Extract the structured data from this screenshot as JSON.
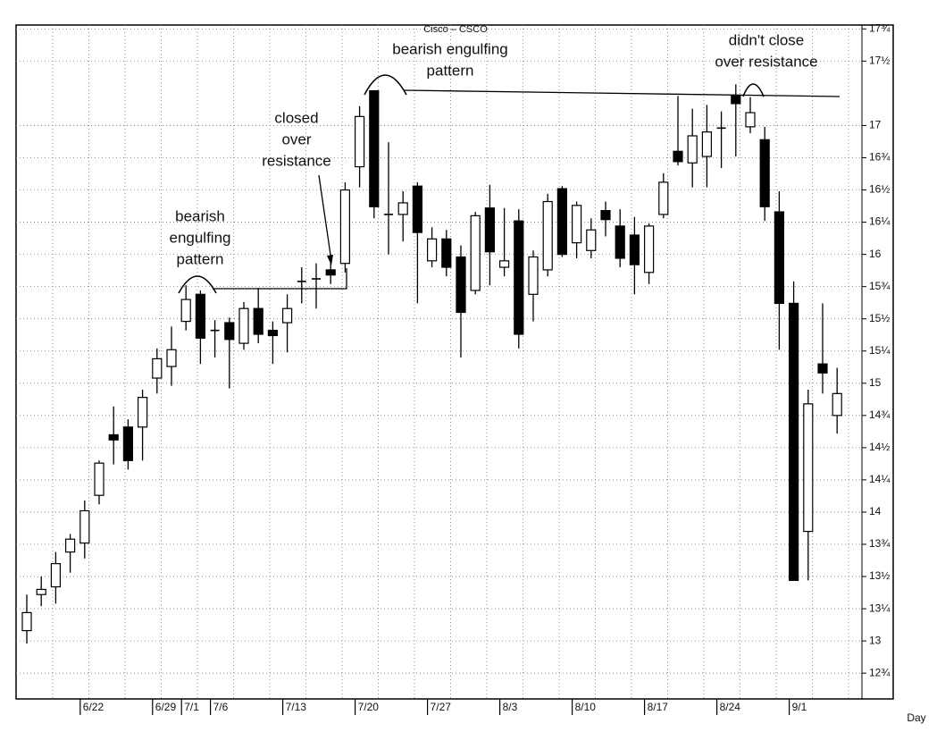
{
  "chart_data": {
    "type": "candlestick",
    "title": "Cisco – CSCO",
    "x_label": "Day",
    "categories": [
      null,
      null,
      null,
      null,
      "6/22",
      null,
      null,
      null,
      null,
      "6/29",
      null,
      "7/1",
      null,
      "7/6",
      null,
      null,
      null,
      null,
      "7/13",
      null,
      null,
      null,
      null,
      "7/20",
      null,
      null,
      null,
      null,
      "7/27",
      null,
      null,
      null,
      null,
      "8/3",
      null,
      null,
      null,
      null,
      "8/10",
      null,
      null,
      null,
      null,
      "8/17",
      null,
      null,
      null,
      null,
      "8/24",
      null,
      null,
      null,
      null,
      "9/1",
      null,
      null,
      null
    ],
    "open": [
      13.08,
      13.36,
      13.42,
      13.69,
      13.76,
      14.13,
      14.6,
      14.66,
      14.66,
      15.04,
      15.13,
      15.48,
      15.69,
      15.41,
      15.47,
      15.31,
      15.58,
      15.41,
      15.47,
      15.79,
      15.81,
      15.88,
      15.93,
      16.68,
      17.27,
      16.31,
      16.31,
      16.53,
      15.95,
      16.12,
      15.98,
      15.72,
      16.36,
      15.9,
      16.26,
      15.69,
      15.88,
      16.51,
      16.09,
      16.03,
      16.34,
      16.22,
      16.15,
      15.86,
      16.31,
      16.8,
      16.71,
      16.76,
      16.98,
      17.23,
      16.99,
      16.89,
      16.33,
      15.62,
      13.85,
      15.15,
      14.75
    ],
    "high": [
      13.36,
      13.5,
      13.69,
      13.83,
      14.09,
      14.4,
      14.82,
      14.72,
      14.95,
      15.27,
      15.44,
      15.76,
      15.72,
      15.49,
      15.51,
      15.63,
      15.74,
      15.48,
      15.69,
      15.9,
      15.93,
      15.97,
      16.56,
      17.15,
      17.27,
      16.87,
      16.49,
      16.56,
      16.21,
      16.19,
      16.07,
      16.33,
      16.54,
      16.36,
      16.35,
      16.03,
      16.47,
      16.53,
      16.41,
      16.28,
      16.41,
      16.35,
      16.29,
      16.24,
      16.63,
      17.23,
      17.13,
      17.16,
      17.11,
      17.32,
      17.22,
      16.99,
      16.49,
      15.79,
      14.95,
      15.62,
      15.12
    ],
    "low": [
      12.98,
      13.27,
      13.29,
      13.53,
      13.64,
      14.06,
      14.37,
      14.33,
      14.4,
      14.92,
      14.98,
      15.41,
      15.15,
      15.2,
      14.96,
      15.26,
      15.31,
      15.15,
      15.24,
      15.62,
      15.58,
      15.77,
      15.86,
      16.52,
      16.28,
      16.0,
      16.1,
      15.62,
      15.9,
      15.83,
      15.2,
      15.69,
      15.76,
      15.83,
      15.27,
      15.48,
      15.83,
      15.98,
      15.97,
      15.97,
      16.14,
      15.9,
      15.69,
      15.77,
      16.28,
      16.69,
      16.52,
      16.52,
      16.67,
      16.76,
      16.94,
      16.26,
      15.26,
      13.47,
      13.47,
      14.92,
      14.61
    ],
    "close": [
      13.22,
      13.4,
      13.6,
      13.79,
      14.01,
      14.38,
      14.56,
      14.4,
      14.89,
      15.19,
      15.26,
      15.65,
      15.35,
      15.41,
      15.34,
      15.58,
      15.38,
      15.37,
      15.58,
      15.79,
      15.81,
      15.84,
      16.5,
      17.07,
      16.37,
      16.31,
      16.4,
      16.17,
      16.12,
      15.9,
      15.55,
      16.3,
      16.02,
      15.95,
      15.38,
      15.98,
      16.41,
      16.0,
      16.38,
      16.19,
      16.27,
      15.97,
      15.92,
      16.22,
      16.56,
      16.72,
      16.92,
      16.95,
      16.98,
      17.17,
      17.1,
      16.37,
      15.62,
      13.47,
      14.84,
      15.08,
      14.92
    ],
    "up_color": "#ffffff",
    "down_color": "#000000",
    "ylim": [
      12.55,
      17.78
    ],
    "yticks": [
      {
        "value": 17.75,
        "label": "17¾"
      },
      {
        "value": 17.5,
        "label": "17½"
      },
      17,
      {
        "value": 16.75,
        "label": "16¾"
      },
      {
        "value": 16.5,
        "label": "16½"
      },
      {
        "value": 16.25,
        "label": "16¼"
      },
      16,
      {
        "value": 15.75,
        "label": "15¾"
      },
      {
        "value": 15.5,
        "label": "15½"
      },
      {
        "value": 15.25,
        "label": "15¼"
      },
      15,
      {
        "value": 14.75,
        "label": "14¾"
      },
      {
        "value": 14.5,
        "label": "14½"
      },
      {
        "value": 14.25,
        "label": "14¼"
      },
      14,
      {
        "value": 13.75,
        "label": "13¾"
      },
      {
        "value": 13.5,
        "label": "13½"
      },
      {
        "value": 13.25,
        "label": "13¼"
      },
      13,
      {
        "value": 12.75,
        "label": "12¾"
      }
    ],
    "grid": true,
    "annotations": [
      [
        "bearish",
        "engulfing",
        "pattern"
      ],
      [
        "closed",
        "over",
        "resistance"
      ],
      [
        "bearish engulfing",
        "pattern"
      ],
      [
        "didn't close",
        "over resistance"
      ]
    ]
  }
}
